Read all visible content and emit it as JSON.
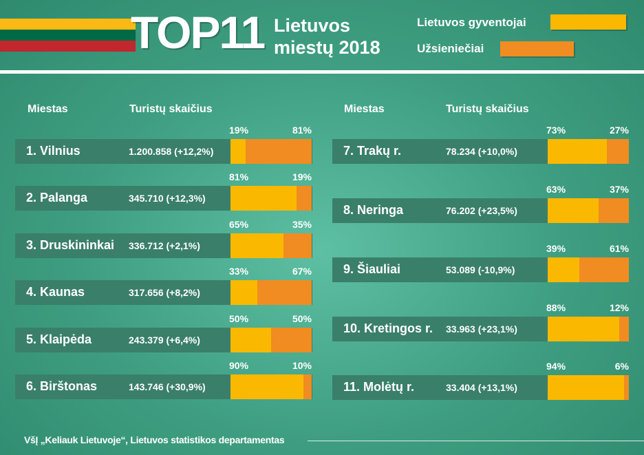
{
  "header": {
    "title_main": "TOP11",
    "title_line1": "Lietuvos",
    "title_line2": "miestų 2018"
  },
  "colors": {
    "flag_yellow": "#fdb913",
    "flag_green": "#006a44",
    "flag_red": "#c1272d",
    "locals": "#fbb800",
    "foreigners": "#f08c21"
  },
  "chart_data": {
    "type": "bar",
    "stacked": true,
    "orientation": "horizontal",
    "legend": [
      {
        "name": "Lietuvos gyventojai",
        "color": "#fbb800"
      },
      {
        "name": "Užsieniečiai",
        "color": "#f08c21"
      }
    ],
    "legend_position": "top-right",
    "column_headers": {
      "city": "Miestas",
      "count": "Turistų skaičius"
    },
    "rows": [
      {
        "city": "1. Vilnius",
        "count": "1.200.858 (+12,2%)",
        "locals": 19,
        "foreigners": 81,
        "locals_label": "19%",
        "foreigners_label": "81%"
      },
      {
        "city": "2. Palanga",
        "count": "345.710 (+12,3%)",
        "locals": 81,
        "foreigners": 19,
        "locals_label": "81%",
        "foreigners_label": "19%"
      },
      {
        "city": "3. Druskininkai",
        "count": "336.712 (+2,1%)",
        "locals": 65,
        "foreigners": 35,
        "locals_label": "65%",
        "foreigners_label": "35%"
      },
      {
        "city": "4. Kaunas",
        "count": "317.656 (+8,2%)",
        "locals": 33,
        "foreigners": 67,
        "locals_label": "33%",
        "foreigners_label": "67%"
      },
      {
        "city": "5. Klaipėda",
        "count": "243.379 (+6,4%)",
        "locals": 50,
        "foreigners": 50,
        "locals_label": "50%",
        "foreigners_label": "50%"
      },
      {
        "city": "6. Birštonas",
        "count": "143.746 (+30,9%)",
        "locals": 90,
        "foreigners": 10,
        "locals_label": "90%",
        "foreigners_label": "10%"
      },
      {
        "city": "7. Trakų r.",
        "count": "78.234 (+10,0%)",
        "locals": 73,
        "foreigners": 27,
        "locals_label": "73%",
        "foreigners_label": "27%"
      },
      {
        "city": "8. Neringa",
        "count": "76.202 (+23,5%)",
        "locals": 63,
        "foreigners": 37,
        "locals_label": "63%",
        "foreigners_label": "37%"
      },
      {
        "city": "9. Šiauliai",
        "count": "53.089 (-10,9%)",
        "locals": 39,
        "foreigners": 61,
        "locals_label": "39%",
        "foreigners_label": "61%"
      },
      {
        "city": "10. Kretingos r.",
        "count": "33.963 (+23,1%)",
        "locals": 88,
        "foreigners": 12,
        "locals_label": "88%",
        "foreigners_label": "12%"
      },
      {
        "city": "11. Molėtų r.",
        "count": "33.404 (+13,1%)",
        "locals": 94,
        "foreigners": 6,
        "locals_label": "94%",
        "foreigners_label": "6%"
      }
    ]
  },
  "footer": {
    "source": "VšĮ „Keliauk Lietuvoje“, Lietuvos statistikos departamentas"
  }
}
